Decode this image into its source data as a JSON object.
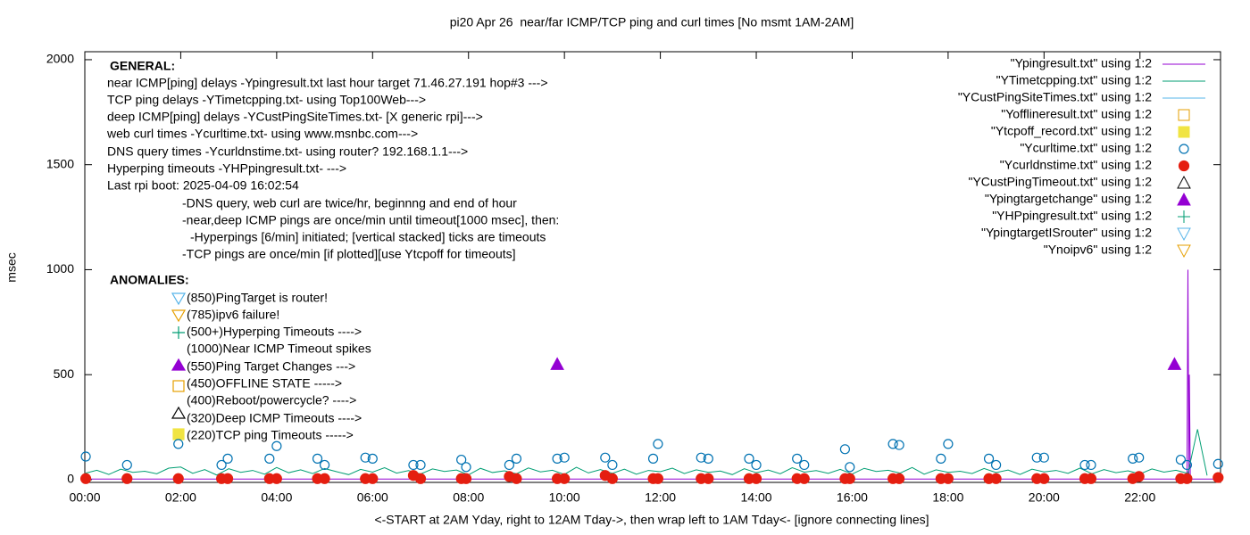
{
  "chart_data": {
    "type": "line",
    "title": "pi20 Apr 26  near/far ICMP/TCP ping and curl times [No msmt 1AM-2AM]",
    "x_label": "<-START at 2AM Yday, right to 12AM Tday->, then wrap left to 1AM Tday<- [ignore connecting lines]",
    "y_label": "msec",
    "xlim": [
      0,
      23.68
    ],
    "ylim": [
      -13,
      2038
    ],
    "xticks": [
      {
        "value": 0,
        "label": "00:00"
      },
      {
        "value": 2,
        "label": "02:00"
      },
      {
        "value": 4,
        "label": "04:00"
      },
      {
        "value": 6,
        "label": "06:00"
      },
      {
        "value": 8,
        "label": "08:00"
      },
      {
        "value": 10,
        "label": "10:00"
      },
      {
        "value": 12,
        "label": "12:00"
      },
      {
        "value": 14,
        "label": "14:00"
      },
      {
        "value": 16,
        "label": "16:00"
      },
      {
        "value": 18,
        "label": "18:00"
      },
      {
        "value": 20,
        "label": "20:00"
      },
      {
        "value": 22,
        "label": "22:00"
      }
    ],
    "yticks": [
      0,
      500,
      1000,
      1500,
      2000
    ],
    "grid": false,
    "legend": "top-right",
    "annotations": [
      "GENERAL:",
      "near ICMP[ping] delays -Ypingresult.txt last hour target 71.46.27.191 hop#3 --->",
      "TCP ping delays -YTimetcpping.txt- using Top100Web--->",
      "deep ICMP[ping] delays -YCustPingSiteTimes.txt- [X generic rpi]--->",
      "web curl times -Ycurltime.txt- using www.msnbc.com--->",
      "DNS query times -Ycurldnstime.txt- using router? 192.168.1.1--->",
      "Hyperping timeouts -YHPpingresult.txt- --->",
      "Last rpi boot: 2025-04-09 16:02:54",
      "-DNS query, web curl are twice/hr, beginnng and end of hour",
      "-near,deep ICMP pings are once/min until timeout[1000 msec], then:",
      "-Hyperpings [6/min] initiated; [vertical stacked] ticks are timeouts",
      "-TCP pings are once/min [if plotted][use Ytcpoff for timeouts]",
      "ANOMALIES:",
      "(850)PingTarget is router!",
      "(785)ipv6 failure!",
      "(500+)Hyperping Timeouts ---->",
      "(1000)Near ICMP Timeout spikes",
      "(550)Ping Target Changes --->",
      "(450)OFFLINE STATE ----->",
      "(400)Reboot/powercycle? ---->",
      "(320)Deep ICMP Timeouts ---->",
      "(220)TCP ping Timeouts ----->"
    ],
    "series": [
      {
        "name": "\"Ypingresult.txt\" using 1:2",
        "color": "#9400d3",
        "style": "line",
        "x": [
          0,
          22.98,
          23.0,
          23.02,
          23.03,
          23.05,
          23.68
        ],
        "values": [
          3,
          3,
          1000,
          3,
          500,
          3,
          3
        ]
      },
      {
        "name": "\"YTimetcpping.txt\" using 1:2",
        "color": "#009e73",
        "style": "line",
        "x": [
          0,
          0.25,
          0.5,
          0.75,
          1,
          1.25,
          1.5,
          1.75,
          2,
          2.25,
          2.5,
          2.75,
          3,
          3.25,
          3.5,
          3.75,
          4,
          4.25,
          4.5,
          4.75,
          5,
          5.25,
          5.5,
          5.75,
          6,
          6.25,
          6.5,
          6.75,
          7,
          7.25,
          7.5,
          7.75,
          8,
          8.25,
          8.5,
          8.75,
          9,
          9.25,
          9.5,
          9.75,
          10,
          10.25,
          10.5,
          10.75,
          11,
          11.25,
          11.5,
          11.75,
          12,
          12.25,
          12.5,
          12.75,
          13,
          13.25,
          13.5,
          13.75,
          14,
          14.25,
          14.5,
          14.75,
          15,
          15.25,
          15.5,
          15.75,
          16,
          16.25,
          16.5,
          16.75,
          17,
          17.25,
          17.5,
          17.75,
          18,
          18.25,
          18.5,
          18.75,
          19,
          19.25,
          19.5,
          19.75,
          20,
          20.25,
          20.5,
          20.75,
          21,
          21.25,
          21.5,
          21.75,
          22,
          22.25,
          22.5,
          22.75,
          23,
          23.2,
          23.4
        ],
        "values": [
          30,
          45,
          25,
          50,
          35,
          40,
          28,
          55,
          60,
          30,
          48,
          22,
          52,
          35,
          44,
          26,
          58,
          33,
          47,
          29,
          53,
          38,
          24,
          49,
          36,
          57,
          31,
          43,
          27,
          51,
          39,
          46,
          23,
          54,
          34,
          42,
          28,
          56,
          37,
          45,
          25,
          59,
          32,
          48,
          30,
          50,
          26,
          44,
          38,
          55,
          29,
          47,
          35,
          41,
          24,
          52,
          33,
          46,
          28,
          57,
          36,
          43,
          30,
          49,
          27,
          54,
          39,
          45,
          31,
          58,
          26,
          47,
          35,
          40,
          29,
          53,
          34,
          46,
          25,
          50,
          37,
          44,
          30,
          55,
          28,
          48,
          33,
          42,
          27,
          51,
          36,
          45,
          30,
          240,
          20
        ]
      },
      {
        "name": "\"YCustPingSiteTimes.txt\" using 1:2",
        "color": "#56b4e9",
        "style": "line",
        "x": [],
        "values": []
      },
      {
        "name": "\"Yofflineresult.txt\" using 1:2",
        "color": "#e69f00",
        "style": "square",
        "x": [],
        "values": []
      },
      {
        "name": "\"Ytcpoff_record.txt\" using 1:2",
        "color": "#f0e442",
        "style": "square-filled",
        "x": [],
        "values": []
      },
      {
        "name": "\"Ycurltime.txt\" using 1:2",
        "color": "#0072b2",
        "style": "circle",
        "x": [
          0.02,
          0.88,
          1.95,
          2.85,
          2.98,
          3.85,
          4.0,
          4.85,
          5.0,
          5.85,
          6.0,
          6.85,
          7.0,
          7.85,
          7.95,
          8.85,
          9.0,
          9.85,
          10.0,
          10.85,
          11.0,
          11.85,
          11.95,
          12.85,
          13.0,
          13.85,
          14.0,
          14.85,
          15.0,
          15.85,
          15.95,
          16.85,
          16.98,
          17.85,
          18.0,
          18.85,
          19.0,
          19.85,
          20.0,
          20.85,
          20.98,
          21.85,
          21.98,
          22.85,
          22.98,
          23.63
        ],
        "values": [
          110,
          70,
          170,
          70,
          100,
          100,
          160,
          100,
          70,
          105,
          100,
          70,
          70,
          95,
          60,
          70,
          100,
          100,
          105,
          105,
          70,
          100,
          170,
          105,
          100,
          100,
          70,
          100,
          70,
          145,
          60,
          170,
          165,
          100,
          170,
          100,
          70,
          105,
          105,
          70,
          70,
          100,
          105,
          95,
          70,
          75
        ]
      },
      {
        "name": "\"Ycurldnstime.txt\" using 1:2",
        "color": "#e51e10",
        "style": "circle-filled",
        "x": [
          0.02,
          0.88,
          1.95,
          2.85,
          2.98,
          3.85,
          4.0,
          4.85,
          5.0,
          5.85,
          6.0,
          6.85,
          7.0,
          7.85,
          7.95,
          8.85,
          9.0,
          9.85,
          10.0,
          10.85,
          11.0,
          11.85,
          11.95,
          12.85,
          13.0,
          13.85,
          14.0,
          14.85,
          15.0,
          15.85,
          15.95,
          16.85,
          16.98,
          17.85,
          18.0,
          18.85,
          19.0,
          19.85,
          20.0,
          20.85,
          20.98,
          21.85,
          21.98,
          22.85,
          22.98,
          23.63
        ],
        "values": [
          5,
          5,
          5,
          5,
          5,
          5,
          5,
          5,
          5,
          5,
          5,
          20,
          5,
          5,
          5,
          15,
          5,
          5,
          5,
          20,
          5,
          5,
          5,
          5,
          5,
          5,
          5,
          5,
          5,
          5,
          5,
          5,
          5,
          5,
          5,
          5,
          5,
          5,
          5,
          5,
          5,
          5,
          15,
          5,
          5,
          10
        ]
      },
      {
        "name": "\"YCustPingTimeout.txt\" using 1:2",
        "color": "#000000",
        "style": "triangle",
        "x": [],
        "values": []
      },
      {
        "name": "\"Ypingtargetchange\" using 1:2",
        "color": "#9400d3",
        "style": "triangle-filled",
        "x": [
          9.85,
          22.72
        ],
        "values": [
          550,
          550
        ]
      },
      {
        "name": "\"YHPpingresult.txt\" using 1:2",
        "color": "#009e73",
        "style": "plus",
        "x": [],
        "values": []
      },
      {
        "name": "\"YpingtargetISrouter\" using 1:2",
        "color": "#56b4e9",
        "style": "triangle-down",
        "x": [],
        "values": []
      },
      {
        "name": "\"Ynoipv6\" using 1:2",
        "color": "#e69f00",
        "style": "triangle-down",
        "x": [],
        "values": []
      }
    ]
  }
}
